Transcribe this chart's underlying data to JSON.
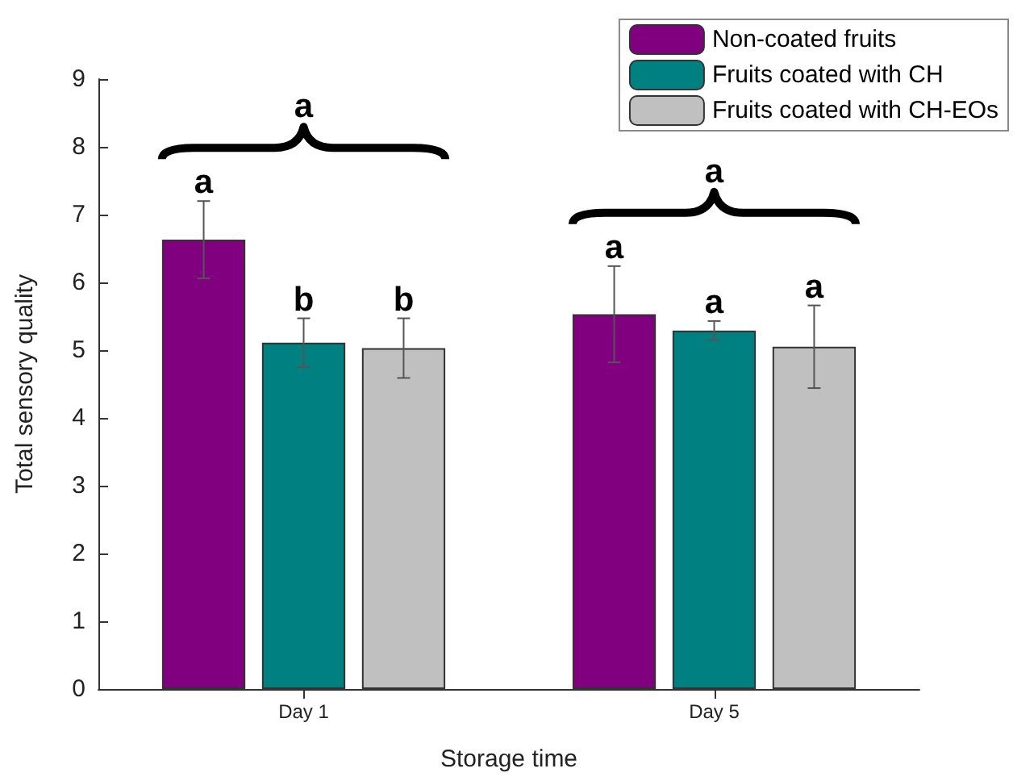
{
  "chart_data": {
    "type": "bar",
    "xlabel": "Storage time",
    "ylabel": "Total sensory quality",
    "categories": [
      "Day 1",
      "Day 5"
    ],
    "series": [
      {
        "name": "Non-coated fruits",
        "color": "#800080",
        "values": [
          6.63,
          5.53
        ],
        "errors": [
          0.57,
          0.71
        ],
        "value_labels": [
          "a",
          "a"
        ]
      },
      {
        "name": "Fruits coated with CH",
        "color": "#008080",
        "values": [
          5.11,
          5.29
        ],
        "errors": [
          0.36,
          0.14
        ],
        "value_labels": [
          "b",
          "a"
        ]
      },
      {
        "name": "Fruits coated with CH-EOs",
        "color": "#c0c0c0",
        "values": [
          5.03,
          5.05
        ],
        "errors": [
          0.44,
          0.61
        ],
        "value_labels": [
          "b",
          "a"
        ]
      }
    ],
    "annotations": [
      "a",
      "a"
    ],
    "ylim": [
      0,
      9
    ],
    "yticks": [
      0,
      1,
      2,
      3,
      4,
      5,
      6,
      7,
      8,
      9
    ],
    "grid": false,
    "legend": "top right"
  }
}
